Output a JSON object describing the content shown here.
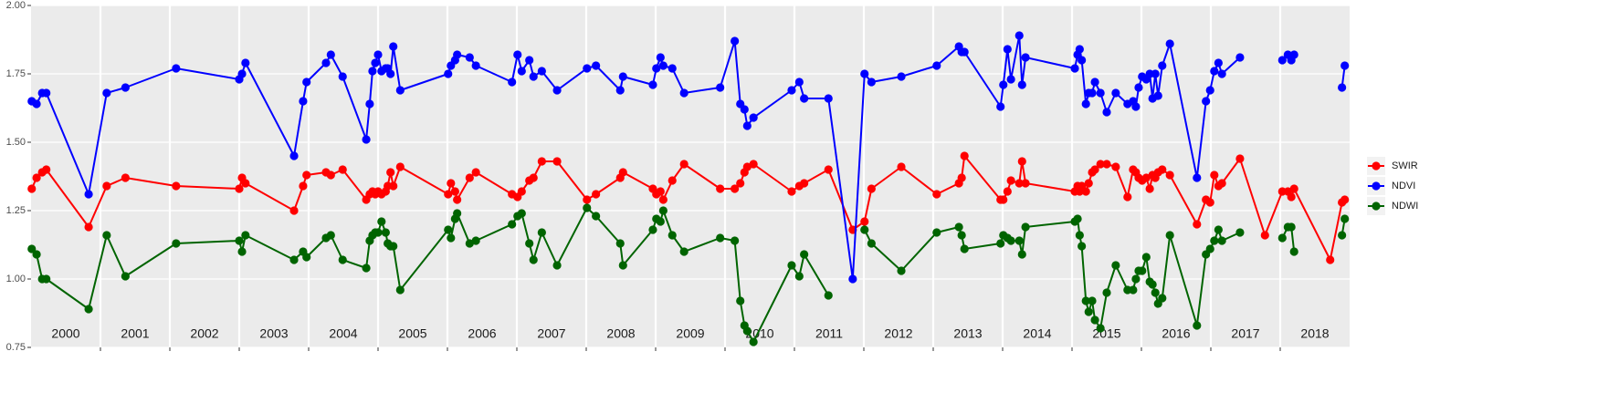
{
  "chart_data": {
    "type": "line",
    "legend": "right",
    "grid": true,
    "background": "#ebebeb",
    "xlim": [
      2000,
      2019
    ],
    "ylim": [
      0.75,
      2.0
    ],
    "yticks": [
      0.75,
      {
        "value": 1,
        "label": "1.00"
      },
      1.25,
      {
        "value": 1.5,
        "label": "1.50"
      },
      1.75,
      {
        "value": 2,
        "label": "2.00"
      }
    ],
    "xgrid": [
      2001,
      2002,
      2003,
      2004,
      2005,
      2006,
      2007,
      2008,
      2009,
      2010,
      2011,
      2012,
      2013,
      2014,
      2015,
      2016,
      2017,
      2018
    ],
    "xticks": [
      {
        "value": 2000.5,
        "label": "2000"
      },
      {
        "value": 2001.5,
        "label": "2001"
      },
      {
        "value": 2002.5,
        "label": "2002"
      },
      {
        "value": 2003.5,
        "label": "2003"
      },
      {
        "value": 2004.5,
        "label": "2004"
      },
      {
        "value": 2005.5,
        "label": "2005"
      },
      {
        "value": 2006.5,
        "label": "2006"
      },
      {
        "value": 2007.5,
        "label": "2007"
      },
      {
        "value": 2008.5,
        "label": "2008"
      },
      {
        "value": 2009.5,
        "label": "2009"
      },
      {
        "value": 2010.5,
        "label": "2010"
      },
      {
        "value": 2011.5,
        "label": "2011"
      },
      {
        "value": 2012.5,
        "label": "2012"
      },
      {
        "value": 2013.5,
        "label": "2013"
      },
      {
        "value": 2014.5,
        "label": "2014"
      },
      {
        "value": 2015.5,
        "label": "2015"
      },
      {
        "value": 2016.5,
        "label": "2016"
      },
      {
        "value": 2017.5,
        "label": "2017"
      },
      {
        "value": 2018.5,
        "label": "2018"
      }
    ],
    "x": [
      2000.01,
      2000.08,
      2000.16,
      2000.22,
      2000.83,
      2001.09,
      2001.36,
      2002.09,
      2003.0,
      2003.04,
      2003.09,
      2003.79,
      2003.92,
      2003.97,
      2004.25,
      2004.32,
      2004.49,
      2004.83,
      2004.88,
      2004.92,
      2004.96,
      2005.0,
      2005.05,
      2005.11,
      2005.14,
      2005.18,
      2005.22,
      2005.32,
      2006.01,
      2006.05,
      2006.11,
      2006.14,
      2006.32,
      2006.41,
      2006.93,
      2007.01,
      2007.07,
      2007.18,
      2007.24,
      2007.36,
      2007.58,
      2008.01,
      2008.14,
      2008.49,
      2008.53,
      2008.96,
      2009.01,
      2009.07,
      2009.11,
      2009.24,
      2009.41,
      2009.93,
      2010.14,
      2010.22,
      2010.28,
      2010.32,
      2010.41,
      2010.96,
      2011.07,
      2011.14,
      2011.49,
      2011.84,
      2012.01,
      2012.11,
      2012.54,
      2013.05,
      2013.37,
      2013.41,
      2013.45,
      2013.97,
      2014.01,
      2014.07,
      2014.12,
      2014.24,
      2014.28,
      2014.33,
      2015.04,
      2015.08,
      2015.11,
      2015.14,
      2015.2,
      2015.24,
      2015.29,
      2015.33,
      2015.41,
      2015.5,
      2015.63,
      2015.8,
      2015.88,
      2015.92,
      2015.96,
      2016.01,
      2016.07,
      2016.12,
      2016.16,
      2016.2,
      2016.24,
      2016.3,
      2016.41,
      2016.8,
      2016.93,
      2016.99,
      2017.05,
      2017.11,
      2017.16,
      2017.42,
      2017.78,
      2018.03,
      2018.11,
      2018.16,
      2018.2,
      2018.72,
      2018.89,
      2018.93
    ],
    "series": [
      {
        "name": "SWIR",
        "color": "#ff0000",
        "values": [
          1.33,
          1.37,
          1.39,
          1.4,
          1.19,
          1.34,
          1.37,
          1.34,
          1.33,
          1.37,
          1.35,
          1.25,
          1.34,
          1.38,
          1.39,
          1.38,
          1.4,
          1.29,
          1.31,
          1.32,
          1.31,
          1.32,
          1.31,
          1.32,
          1.34,
          1.39,
          1.34,
          1.41,
          1.31,
          1.35,
          1.32,
          1.29,
          1.37,
          1.39,
          1.31,
          1.3,
          1.32,
          1.36,
          1.37,
          1.43,
          1.43,
          1.29,
          1.31,
          1.37,
          1.39,
          1.33,
          1.31,
          1.32,
          1.29,
          1.36,
          1.42,
          1.33,
          1.33,
          1.35,
          1.39,
          1.41,
          1.42,
          1.32,
          1.34,
          1.35,
          1.4,
          1.18,
          1.21,
          1.33,
          1.41,
          1.31,
          1.35,
          1.37,
          1.45,
          1.29,
          1.29,
          1.32,
          1.36,
          1.35,
          1.43,
          1.35,
          1.32,
          1.34,
          1.32,
          1.34,
          1.32,
          1.35,
          1.39,
          1.4,
          1.42,
          1.42,
          1.41,
          1.3,
          1.4,
          1.39,
          1.37,
          1.36,
          1.37,
          1.33,
          1.38,
          1.37,
          1.39,
          1.4,
          1.38,
          1.2,
          1.29,
          1.28,
          1.38,
          1.34,
          1.35,
          1.44,
          1.16,
          1.32,
          1.32,
          1.3,
          1.33,
          1.07,
          1.28,
          1.29
        ]
      },
      {
        "name": "NDVI",
        "color": "#0000ff",
        "values": [
          1.65,
          1.64,
          1.68,
          1.68,
          1.31,
          1.68,
          1.7,
          1.77,
          1.73,
          1.75,
          1.79,
          1.45,
          1.65,
          1.72,
          1.79,
          1.82,
          1.74,
          1.51,
          1.64,
          1.76,
          1.79,
          1.82,
          1.76,
          1.77,
          1.77,
          1.75,
          1.85,
          1.69,
          1.75,
          1.78,
          1.8,
          1.82,
          1.81,
          1.78,
          1.72,
          1.82,
          1.76,
          1.8,
          1.74,
          1.76,
          1.69,
          1.77,
          1.78,
          1.69,
          1.74,
          1.71,
          1.77,
          1.81,
          1.78,
          1.77,
          1.68,
          1.7,
          1.87,
          1.64,
          1.62,
          1.56,
          1.59,
          1.69,
          1.72,
          1.66,
          1.66,
          1.0,
          1.75,
          1.72,
          1.74,
          1.78,
          1.85,
          1.83,
          1.83,
          1.63,
          1.71,
          1.84,
          1.73,
          1.89,
          1.71,
          1.81,
          1.77,
          1.82,
          1.84,
          1.8,
          1.64,
          1.68,
          1.68,
          1.72,
          1.68,
          1.61,
          1.68,
          1.64,
          1.65,
          1.63,
          1.7,
          1.74,
          1.73,
          1.75,
          1.66,
          1.75,
          1.67,
          1.78,
          1.86,
          1.37,
          1.65,
          1.69,
          1.76,
          1.79,
          1.75,
          1.81,
          null,
          1.8,
          1.82,
          1.8,
          1.82,
          null,
          1.7,
          1.78
        ]
      },
      {
        "name": "NDWI",
        "color": "#006400",
        "values": [
          1.11,
          1.09,
          1.0,
          1.0,
          0.89,
          1.16,
          1.01,
          1.13,
          1.14,
          1.1,
          1.16,
          1.07,
          1.1,
          1.08,
          1.15,
          1.16,
          1.07,
          1.04,
          1.14,
          1.16,
          1.17,
          1.17,
          1.21,
          1.17,
          1.13,
          1.12,
          1.12,
          0.96,
          1.18,
          1.15,
          1.22,
          1.24,
          1.13,
          1.14,
          1.2,
          1.23,
          1.24,
          1.13,
          1.07,
          1.17,
          1.05,
          1.26,
          1.23,
          1.13,
          1.05,
          1.18,
          1.22,
          1.21,
          1.25,
          1.16,
          1.1,
          1.15,
          1.14,
          0.92,
          0.83,
          0.81,
          0.77,
          1.05,
          1.01,
          1.09,
          0.94,
          null,
          1.18,
          1.13,
          1.03,
          1.17,
          1.19,
          1.16,
          1.11,
          1.13,
          1.16,
          1.15,
          1.14,
          1.14,
          1.09,
          1.19,
          1.21,
          1.22,
          1.16,
          1.12,
          0.92,
          0.88,
          0.92,
          0.85,
          0.82,
          0.95,
          1.05,
          0.96,
          0.96,
          1.0,
          1.03,
          1.03,
          1.08,
          0.99,
          0.98,
          0.95,
          0.91,
          0.93,
          1.16,
          0.83,
          1.09,
          1.11,
          1.14,
          1.18,
          1.14,
          1.17,
          null,
          1.15,
          1.19,
          1.19,
          1.1,
          null,
          1.16,
          1.22
        ]
      }
    ]
  }
}
